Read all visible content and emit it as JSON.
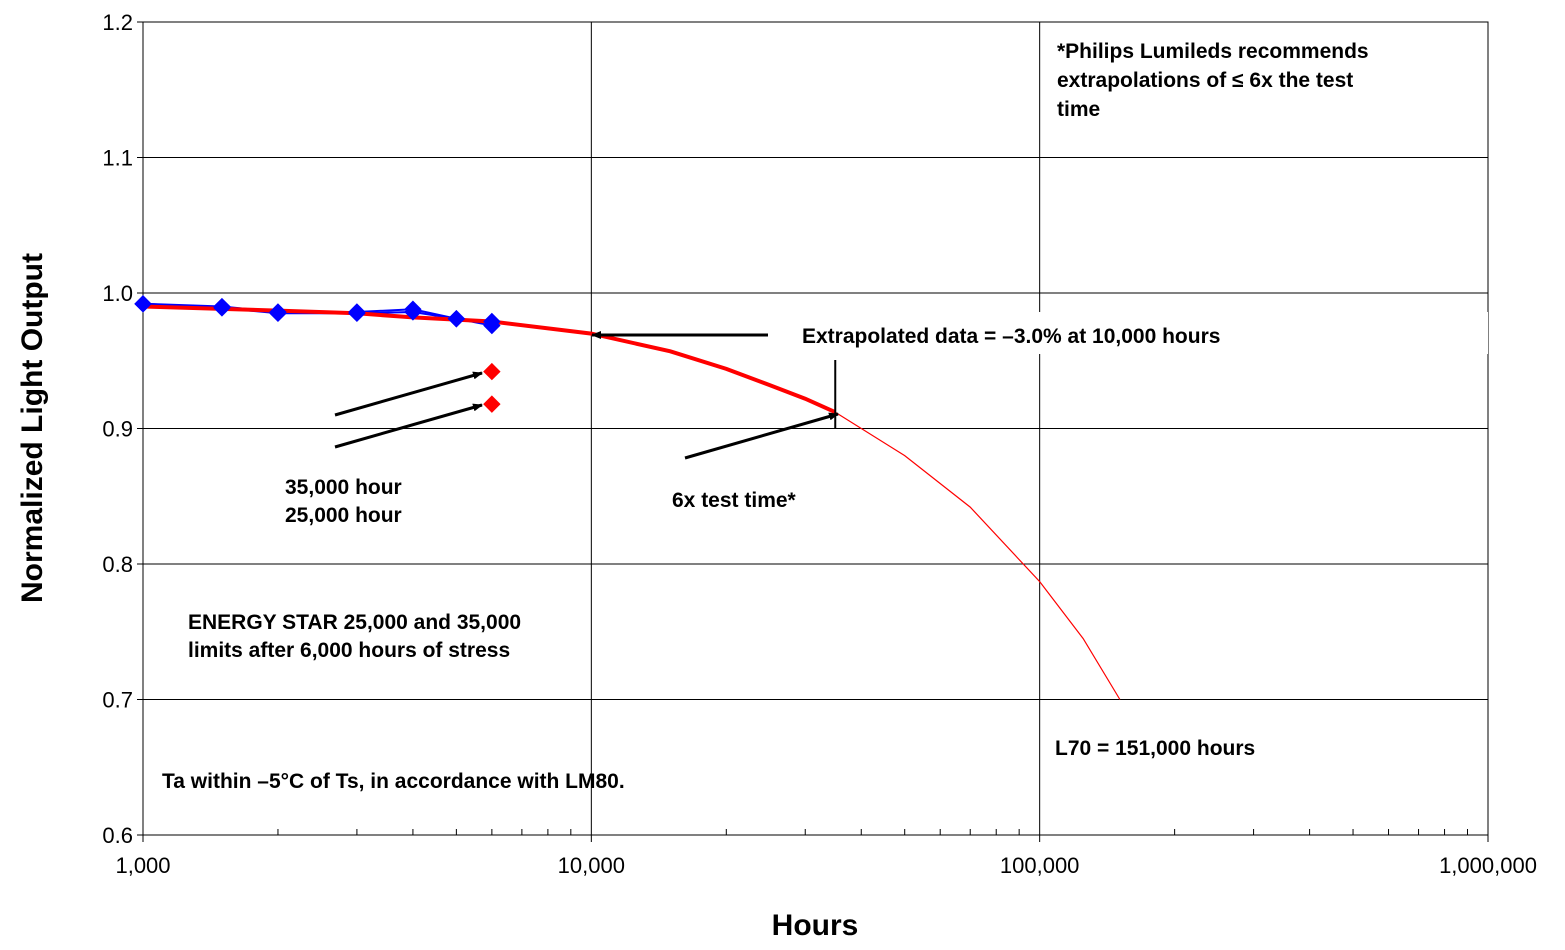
{
  "chart_data": {
    "type": "line",
    "xlabel": "Hours",
    "ylabel": "Normalized Light Output",
    "x_scale": "log",
    "xlim": [
      1000,
      1000000
    ],
    "ylim": [
      0.6,
      1.2
    ],
    "grid": true,
    "x_tick_labels": [
      "1,000",
      "10,000",
      "100,000",
      "1,000,000"
    ],
    "y_tick_labels": [
      "0.6",
      "0.7",
      "0.8",
      "0.9",
      "1.0",
      "1.1",
      "1.2"
    ],
    "series": [
      {
        "color": "#0000ff",
        "marker": "diamond",
        "x": [
          1000,
          1500,
          2000,
          3000,
          4000,
          5000,
          6000
        ],
        "y": [
          0.992,
          0.99,
          0.986,
          0.986,
          0.988,
          0.981,
          0.979
        ]
      },
      {
        "color": "#0000ff",
        "marker": "diamond",
        "x": [
          1000,
          1500,
          2000,
          3000,
          4000,
          5000,
          6000
        ],
        "y": [
          0.992,
          0.989,
          0.985,
          0.985,
          0.986,
          0.981,
          0.976
        ]
      },
      {
        "color": "#ff0000",
        "marker": "diamond",
        "x": [
          6000,
          6000
        ],
        "y": [
          0.942,
          0.918
        ]
      }
    ],
    "fit": {
      "color": "#ff0000",
      "x": [
        1000,
        2000,
        3000,
        4000,
        6000,
        10000,
        15000,
        20000,
        25000,
        30000,
        35000,
        50000,
        70000,
        100000,
        125000,
        151000
      ],
      "y": [
        0.99,
        0.987,
        0.985,
        0.982,
        0.979,
        0.97,
        0.957,
        0.944,
        0.932,
        0.922,
        0.912,
        0.88,
        0.842,
        0.787,
        0.745,
        0.7
      ],
      "bold_until": 35000
    },
    "annotations": {
      "philips_note": [
        "*Philips Lumileds recommends",
        "extrapolations of ≤ 6x the test",
        "time"
      ],
      "extrapolated": "Extrapolated data = –3.0% at 10,000 hours",
      "hours_35k": "35,000 hour",
      "hours_25k": "25,000 hour",
      "six_x": "6x test time*",
      "energy_star": [
        "ENERGY STAR  25,000 and 35,000",
        "limits after 6,000 hours of stress"
      ],
      "l70": "L70 = 151,000 hours",
      "ta_note": "Ta within –5°C of Ts, in accordance with LM80."
    }
  }
}
